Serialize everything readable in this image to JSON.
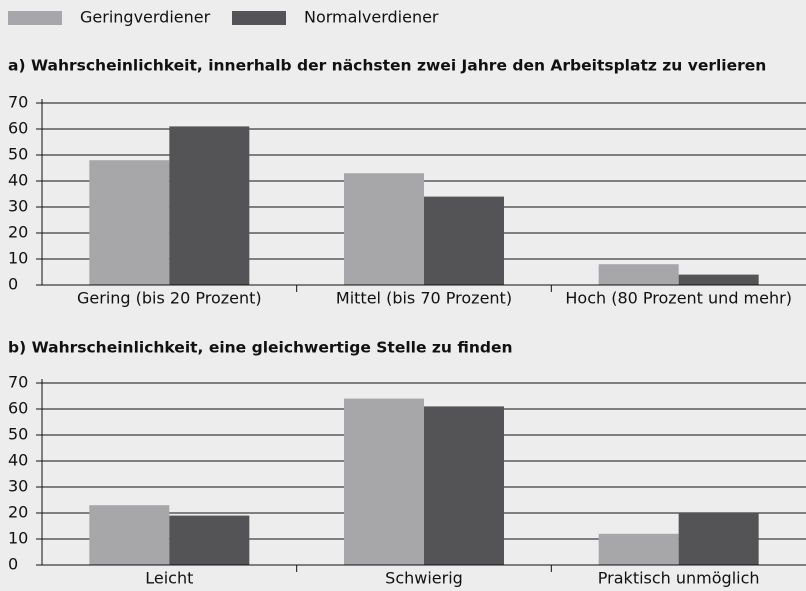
{
  "chart_data": [
    {
      "type": "bar",
      "title": "a) Wahrscheinlichkeit, innerhalb der nächsten zwei Jahre den Arbeitsplatz zu verlieren",
      "categories": [
        "Gering (bis 20 Prozent)",
        "Mittel (bis 70 Prozent)",
        "Hoch (80 Prozent und mehr)"
      ],
      "series": [
        {
          "name": "Geringverdiener",
          "color": "#a7a7a9",
          "values": [
            48,
            43,
            8
          ]
        },
        {
          "name": "Normalverdiener",
          "color": "#545456",
          "values": [
            61,
            34,
            4
          ]
        }
      ],
      "ylim": [
        0,
        70
      ],
      "yticks": [
        0,
        10,
        20,
        30,
        40,
        50,
        60,
        70
      ],
      "grid": true
    },
    {
      "type": "bar",
      "title": "b) Wahrscheinlichkeit, eine gleichwertige Stelle zu finden",
      "categories": [
        "Leicht",
        "Schwierig",
        "Praktisch unmöglich"
      ],
      "series": [
        {
          "color": "#a7a7a9",
          "values": [
            23,
            64,
            12
          ]
        },
        {
          "color": "#545456",
          "values": [
            19,
            61,
            20
          ]
        }
      ],
      "ylim": [
        0,
        70
      ],
      "yticks": [
        0,
        10,
        20,
        30,
        40,
        50,
        60,
        70
      ],
      "grid": true
    }
  ]
}
